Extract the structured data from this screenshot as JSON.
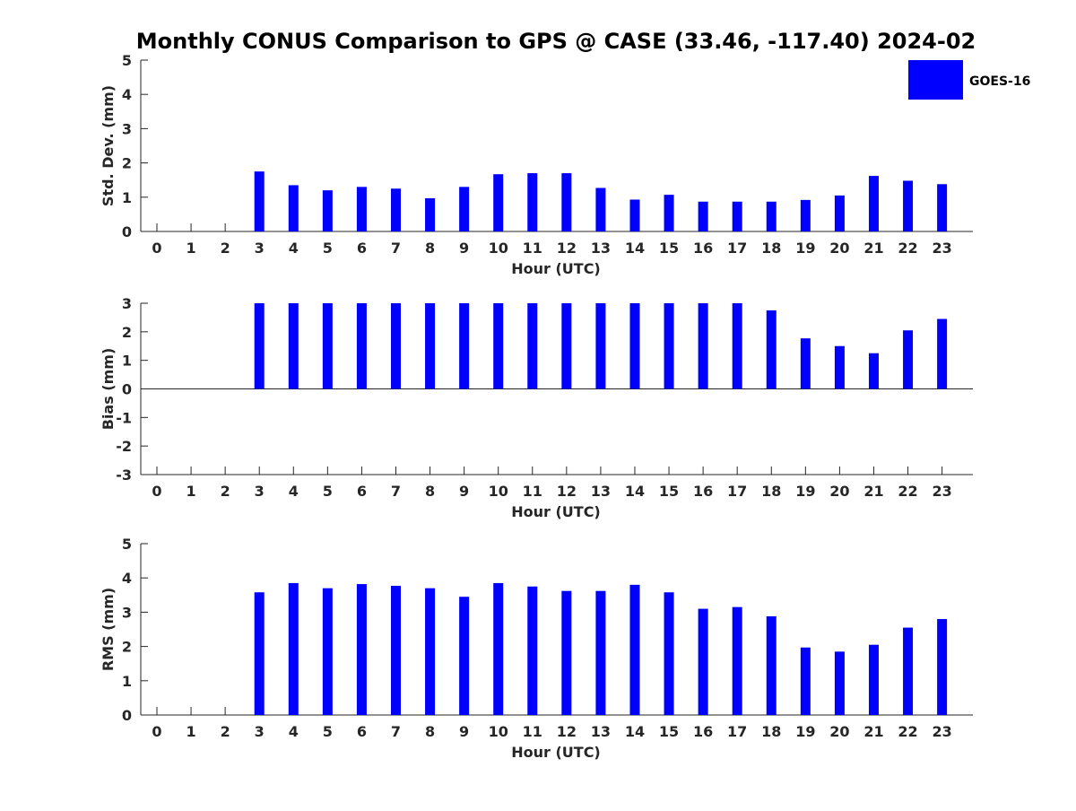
{
  "title": "Monthly CONUS Comparison to GPS @ CASE (33.46, -117.40) 2024-02",
  "legend": {
    "label": "GOES-16",
    "color": "#0000ff",
    "position": "top-right"
  },
  "chart_data": [
    {
      "type": "bar",
      "xlabel": "Hour (UTC)",
      "ylabel": "Std. Dev. (mm)",
      "ylim": [
        0,
        5
      ],
      "yticks": [
        0,
        1,
        2,
        3,
        4,
        5
      ],
      "categories": [
        "0",
        "1",
        "2",
        "3",
        "4",
        "5",
        "6",
        "7",
        "8",
        "9",
        "10",
        "11",
        "12",
        "13",
        "14",
        "15",
        "16",
        "17",
        "18",
        "19",
        "20",
        "21",
        "22",
        "23"
      ],
      "series": [
        {
          "name": "GOES-16",
          "values": [
            null,
            null,
            null,
            1.75,
            1.35,
            1.2,
            1.3,
            1.25,
            0.97,
            1.3,
            1.67,
            1.7,
            1.7,
            1.27,
            0.93,
            1.07,
            0.87,
            0.87,
            0.87,
            0.92,
            1.05,
            1.62,
            1.48,
            1.38
          ]
        }
      ]
    },
    {
      "type": "bar",
      "xlabel": "Hour (UTC)",
      "ylabel": "Bias (mm)",
      "ylim": [
        -3,
        3
      ],
      "yticks": [
        -3,
        -2,
        -1,
        0,
        1,
        2,
        3
      ],
      "categories": [
        "0",
        "1",
        "2",
        "3",
        "4",
        "5",
        "6",
        "7",
        "8",
        "9",
        "10",
        "11",
        "12",
        "13",
        "14",
        "15",
        "16",
        "17",
        "18",
        "19",
        "20",
        "21",
        "22",
        "23"
      ],
      "series": [
        {
          "name": "GOES-16",
          "values": [
            null,
            null,
            null,
            3,
            3,
            3,
            3,
            3,
            3,
            3,
            3,
            3,
            3,
            3,
            3,
            3,
            3,
            3,
            2.75,
            1.77,
            1.5,
            1.25,
            2.05,
            2.45
          ]
        }
      ]
    },
    {
      "type": "bar",
      "xlabel": "Hour (UTC)",
      "ylabel": "RMS (mm)",
      "ylim": [
        0,
        5
      ],
      "yticks": [
        0,
        1,
        2,
        3,
        4,
        5
      ],
      "categories": [
        "0",
        "1",
        "2",
        "3",
        "4",
        "5",
        "6",
        "7",
        "8",
        "9",
        "10",
        "11",
        "12",
        "13",
        "14",
        "15",
        "16",
        "17",
        "18",
        "19",
        "20",
        "21",
        "22",
        "23"
      ],
      "series": [
        {
          "name": "GOES-16",
          "values": [
            null,
            null,
            null,
            3.58,
            3.85,
            3.7,
            3.82,
            3.77,
            3.7,
            3.45,
            3.85,
            3.75,
            3.62,
            3.62,
            3.8,
            3.58,
            3.1,
            3.15,
            2.88,
            1.97,
            1.85,
            2.05,
            2.55,
            2.8
          ]
        }
      ]
    }
  ]
}
